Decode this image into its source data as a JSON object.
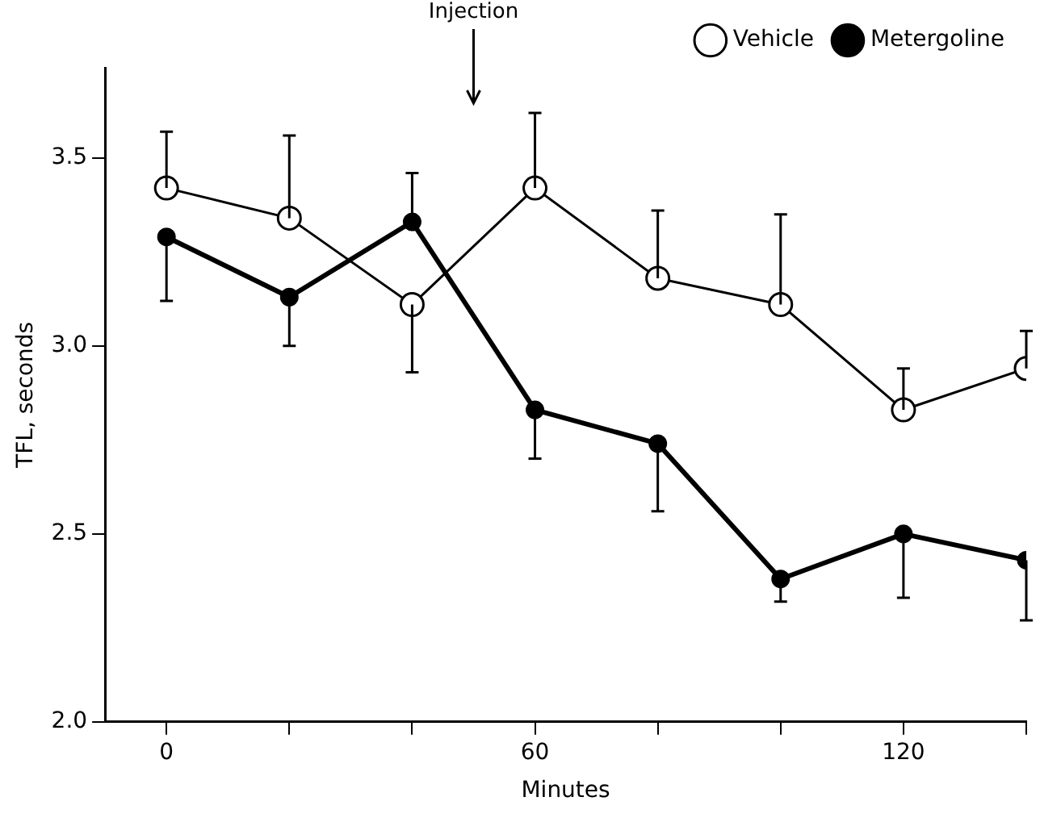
{
  "chart_data": {
    "type": "line",
    "xlabel": "Minutes",
    "ylabel": "TFL, seconds",
    "x": [
      0,
      20,
      40,
      60,
      80,
      100,
      120,
      140
    ],
    "series": [
      {
        "name": "Vehicle",
        "color": "#000000",
        "values": [
          3.42,
          3.34,
          3.11,
          3.42,
          3.18,
          3.11,
          2.83,
          2.94
        ],
        "errors": [
          [
            3.42,
            3.57
          ],
          [
            3.34,
            3.56
          ],
          [
            2.93,
            3.11
          ],
          [
            3.42,
            3.62
          ],
          [
            3.18,
            3.36
          ],
          [
            3.11,
            3.35
          ],
          [
            2.83,
            2.94
          ],
          [
            2.94,
            3.04
          ]
        ]
      },
      {
        "name": "Metergoline",
        "color": "#000000",
        "values": [
          3.29,
          3.13,
          3.33,
          2.83,
          2.74,
          2.38,
          2.5,
          2.43
        ],
        "errors": [
          [
            3.12,
            3.29
          ],
          [
            3.0,
            3.13
          ],
          [
            3.33,
            3.46
          ],
          [
            2.7,
            2.83
          ],
          [
            2.56,
            2.74
          ],
          [
            2.32,
            2.38
          ],
          [
            2.33,
            2.5
          ],
          [
            2.27,
            2.43
          ]
        ]
      }
    ],
    "xlim": [
      -10,
      140
    ],
    "xticks": [
      {
        "value": 0,
        "label": "0"
      },
      {
        "value": 20,
        "label": null
      },
      {
        "value": 40,
        "label": null
      },
      {
        "value": 60,
        "label": "60"
      },
      {
        "value": 80,
        "label": null
      },
      {
        "value": 100,
        "label": null
      },
      {
        "value": 120,
        "label": "120"
      },
      {
        "value": 140,
        "label": null
      }
    ],
    "ylim": [
      2.0,
      3.74
    ],
    "yticks": [
      {
        "value": 2.0,
        "label": "2.0"
      },
      {
        "value": 2.5,
        "label": "2.5"
      },
      {
        "value": 3.0,
        "label": "3.0"
      },
      {
        "value": 3.5,
        "label": "3.5"
      }
    ],
    "annotations": [
      "Injection"
    ],
    "legend": "top right",
    "marker": "circle",
    "line_style": "solid",
    "grid": false
  }
}
